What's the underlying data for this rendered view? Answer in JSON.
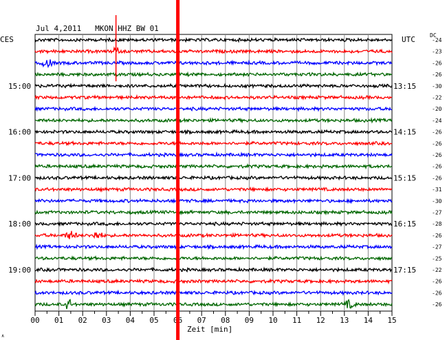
{
  "header": {
    "title": "Jul 4,2011   MKON HHZ BW 01",
    "left_tz": "CES",
    "right_tz": "UTC",
    "dc_label": "DC"
  },
  "chart_data": {
    "type": "line",
    "title": "Jul 4,2011   MKON HHZ BW 01",
    "xlabel": "Zeit [min]",
    "xlim": [
      0,
      15
    ],
    "x_ticks": [
      "00",
      "01",
      "02",
      "03",
      "04",
      "05",
      "06",
      "07",
      "08",
      "09",
      "10",
      "11",
      "12",
      "13",
      "14",
      "15"
    ],
    "grid": true,
    "trace_colors": [
      "#000000",
      "#ff0000",
      "#0000ff",
      "#006600"
    ],
    "left_time_labels": [
      {
        "trace": 4,
        "label": "15:00"
      },
      {
        "trace": 8,
        "label": "16:00"
      },
      {
        "trace": 12,
        "label": "17:00"
      },
      {
        "trace": 16,
        "label": "18:00"
      },
      {
        "trace": 20,
        "label": "19:00"
      }
    ],
    "right_time_labels": [
      {
        "trace": 4,
        "label": "13:15"
      },
      {
        "trace": 8,
        "label": "14:15"
      },
      {
        "trace": 12,
        "label": "15:15"
      },
      {
        "trace": 16,
        "label": "16:15"
      },
      {
        "trace": 20,
        "label": "17:15"
      }
    ],
    "dc_offsets": [
      "-24",
      "-23",
      "-26",
      "-26",
      "-30",
      "-22",
      "-20",
      "-24",
      "-26",
      "-26",
      "-26",
      "-26",
      "-26",
      "-31",
      "-30",
      "-27",
      "-28",
      "-26",
      "-27",
      "-25",
      "-22",
      "-26",
      "-26",
      "-26"
    ],
    "events": [
      {
        "trace": 1,
        "minute": 3.4,
        "type": "spike"
      },
      {
        "trace": 2,
        "minute": 0.5,
        "type": "burst"
      },
      {
        "trace": 17,
        "minute": 1.5,
        "type": "burst"
      },
      {
        "trace": 17,
        "minute": 2.6,
        "type": "burst"
      },
      {
        "trace": 23,
        "minute": 1.4,
        "type": "spike"
      },
      {
        "trace": 23,
        "minute": 13.2,
        "type": "burst"
      }
    ],
    "marker": {
      "minute": 6.0,
      "color": "#ff0000"
    },
    "top_spike": {
      "minute": 3.4,
      "color": "#ff0000"
    }
  }
}
